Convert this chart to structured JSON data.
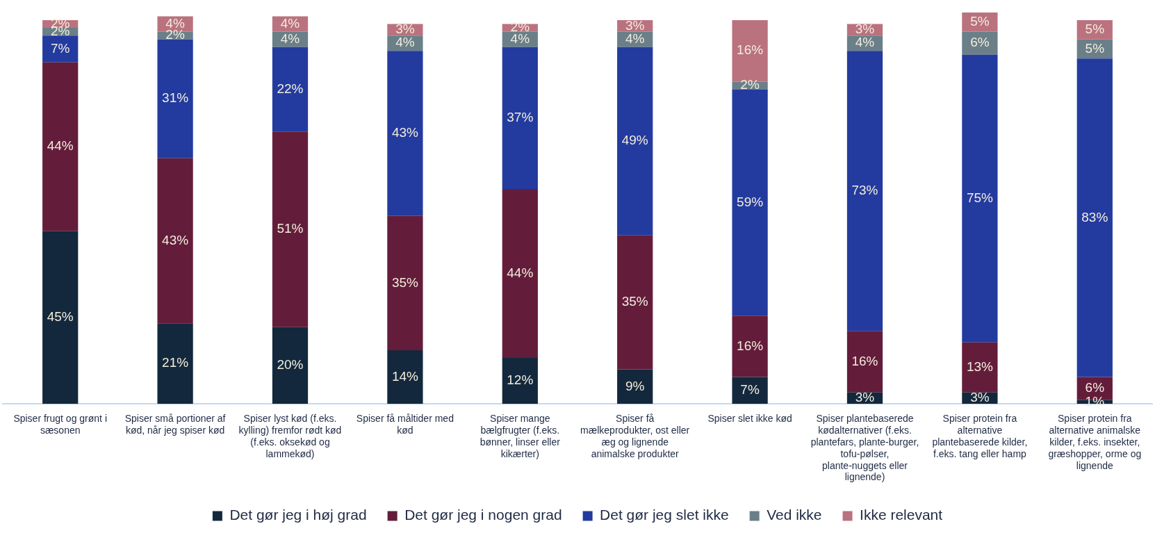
{
  "chart_data": {
    "type": "bar",
    "stacked": true,
    "legend": "bottom",
    "tick_labels": "x",
    "categories": [
      "Spiser frugt og grønt i sæsonen",
      "Spiser små portioner af kød, når jeg spiser kød",
      "Spiser lyst kød (f.eks. kylling) fremfor rødt kød (f.eks. oksekød og lammekød)",
      "Spiser få måltider med kød",
      "Spiser mange bælgfrugter (f.eks. bønner, linser eller kikærter)",
      "Spiser få mælkeprodukter, ost eller æg og lignende animalske produkter",
      "Spiser slet ikke kød",
      "Spiser plantebaserede kødalternativer (f.eks. plantefars, plante-burger, tofu-pølser, plante-nuggets eller lignende)",
      "Spiser protein fra alternative plantebaserede kilder, f.eks. tang eller hamp",
      "Spiser protein fra alternative animalske kilder, f.eks. insekter, græshopper, orme og lignende"
    ],
    "series": [
      {
        "name": "Det gør jeg i høj grad",
        "color": "#13283c",
        "values": [
          45,
          21,
          20,
          14,
          12,
          9,
          7,
          3,
          3,
          1
        ],
        "value_labels": [
          "45%",
          "21%",
          "20%",
          "14%",
          "12%",
          "9%",
          "7%",
          "3%",
          "3%",
          "1%"
        ]
      },
      {
        "name": "Det gør jeg i nogen grad",
        "color": "#631d3b",
        "values": [
          44,
          43,
          51,
          35,
          44,
          35,
          16,
          16,
          13,
          6
        ],
        "value_labels": [
          "44%",
          "43%",
          "51%",
          "35%",
          "44%",
          "35%",
          "16%",
          "16%",
          "13%",
          "6%"
        ]
      },
      {
        "name": "Det gør jeg slet ikke",
        "color": "#233b9f",
        "values": [
          7,
          31,
          22,
          43,
          37,
          49,
          59,
          73,
          75,
          83
        ],
        "value_labels": [
          "7%",
          "31%",
          "22%",
          "43%",
          "37%",
          "49%",
          "59%",
          "73%",
          "75%",
          "83%"
        ]
      },
      {
        "name": "Ved ikke",
        "color": "#6a7f88",
        "values": [
          2,
          2,
          4,
          4,
          4,
          4,
          2,
          4,
          6,
          5
        ],
        "value_labels": [
          "2%",
          "2%",
          "4%",
          "4%",
          "4%",
          "4%",
          "2%",
          "4%",
          "6%",
          "5%"
        ]
      },
      {
        "name": "Ikke relevant",
        "color": "#ba727f",
        "values": [
          2,
          4,
          4,
          3,
          2,
          3,
          16,
          3,
          5,
          5
        ],
        "value_labels": [
          "2%",
          "4%",
          "4%",
          "3%",
          "2%",
          "3%",
          "16%",
          "3%",
          "5%",
          "5%"
        ]
      }
    ]
  }
}
